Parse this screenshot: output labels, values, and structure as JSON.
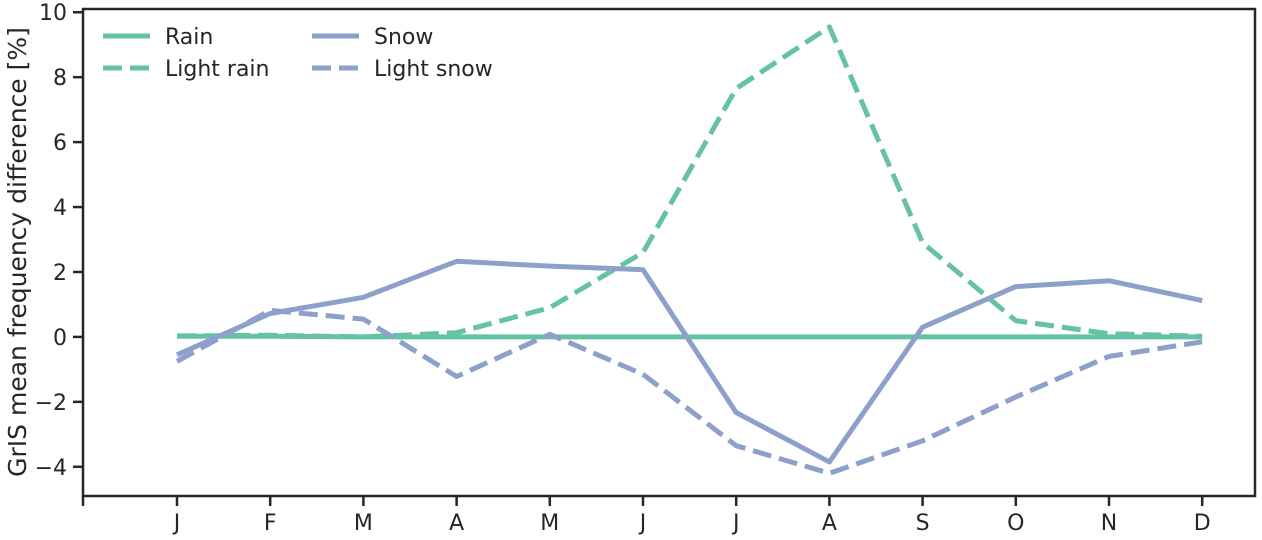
{
  "chart_data": {
    "type": "line",
    "ylabel": "GrIS mean frequency difference [%]",
    "xlabel": "",
    "categories": [
      "J",
      "F",
      "M",
      "A",
      "M",
      "J",
      "J",
      "A",
      "S",
      "O",
      "N",
      "D"
    ],
    "ylim": [
      -4.9,
      10.1
    ],
    "yticks": [
      -4,
      -2,
      0,
      2,
      4,
      6,
      8,
      10
    ],
    "grid": false,
    "legend_position": "top-left",
    "series": [
      {
        "name": "Rain",
        "style": "solid",
        "color": "#66c2a5",
        "values": [
          0.02,
          0.02,
          0.0,
          0.0,
          0.0,
          0.0,
          0.0,
          0.0,
          0.0,
          0.0,
          0.0,
          0.0
        ]
      },
      {
        "name": "Light rain",
        "style": "dashed",
        "color": "#66c2a5",
        "values": [
          0.03,
          0.05,
          0.0,
          0.13,
          0.9,
          2.6,
          7.65,
          9.55,
          2.9,
          0.5,
          0.1,
          0.02
        ]
      },
      {
        "name": "Snow",
        "style": "solid",
        "color": "#8da0cb",
        "values": [
          -0.55,
          0.72,
          1.22,
          2.33,
          2.18,
          2.07,
          -2.33,
          -3.85,
          0.3,
          1.55,
          1.73,
          1.12
        ]
      },
      {
        "name": "Light snow",
        "style": "dashed",
        "color": "#8da0cb",
        "values": [
          -0.75,
          0.82,
          0.55,
          -1.22,
          0.08,
          -1.15,
          -3.35,
          -4.2,
          -3.2,
          -1.85,
          -0.6,
          -0.15
        ]
      }
    ]
  }
}
